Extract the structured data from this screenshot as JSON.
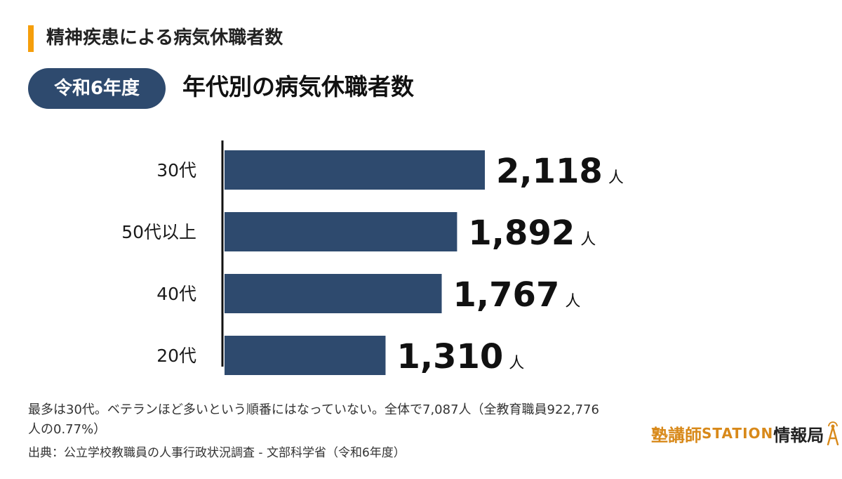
{
  "header": {
    "title": "精神疾患による病気休職者数"
  },
  "badge": {
    "label": "令和6年度"
  },
  "chart_data": {
    "type": "bar",
    "orientation": "horizontal",
    "title": "年代別の病気休職者数",
    "categories": [
      "30代",
      "50代以上",
      "40代",
      "20代"
    ],
    "values": [
      2118,
      1892,
      1767,
      1310
    ],
    "value_labels": [
      "2,118",
      "1,892",
      "1,767",
      "1,310"
    ],
    "unit": "人",
    "bar_color": "#2e4a6e",
    "xlim": [
      0,
      2118
    ],
    "grid": false,
    "legend": "none"
  },
  "note": {
    "text": "最多は30代。ベテランほど多いという順番にはなっていない。全体で7,087人（全教育職員922,776人の0.77%）"
  },
  "source": {
    "text": "出典：公立学校教職員の人事行政状況調査 - 文部科学省（令和6年度）"
  },
  "logo": {
    "part1": "塾講師",
    "part2": "STATION",
    "part3": "情報局",
    "colors": {
      "accent": "#d8891a",
      "dark": "#222222"
    }
  }
}
